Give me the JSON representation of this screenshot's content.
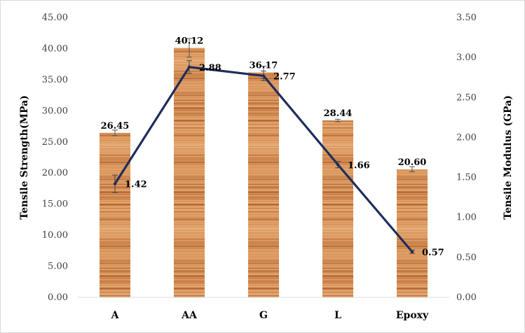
{
  "chart_data": {
    "type": "bar",
    "title": "",
    "categories": [
      "A",
      "AA",
      "G",
      "L",
      "Epoxy"
    ],
    "series": [
      {
        "type": "bar",
        "axis": "left",
        "values": [
          26.45,
          40.12,
          36.17,
          28.44,
          20.6
        ],
        "labels": [
          "26.45",
          "40.12",
          "36.17",
          "28.44",
          "20.60"
        ],
        "errors": [
          0.45,
          1.5,
          1.0,
          0.2,
          0.4
        ]
      },
      {
        "type": "line",
        "axis": "right",
        "values": [
          1.42,
          2.88,
          2.77,
          1.66,
          0.57
        ],
        "labels": [
          "1.42",
          "2.88",
          "2.77",
          "1.66",
          "0.57"
        ],
        "errors": [
          0.11,
          0.08,
          0.06,
          0.04,
          0.02
        ]
      }
    ],
    "y_left": {
      "label": "Tensile Strength(MPa)",
      "min": 0,
      "max": 45,
      "step": 5,
      "ticks": [
        "0.00",
        "5.00",
        "10.00",
        "15.00",
        "20.00",
        "25.00",
        "30.00",
        "35.00",
        "40.00",
        "45.00"
      ]
    },
    "y_right": {
      "label": "Tensile Modulus (GPa)",
      "min": 0,
      "max": 3.5,
      "step": 0.5,
      "ticks": [
        "0.00",
        "0.50",
        "1.00",
        "1.50",
        "2.00",
        "2.50",
        "3.00",
        "3.50"
      ]
    },
    "grid": false,
    "legend": "none",
    "colors": {
      "bar_base": "#d9955a",
      "bar_light": "#eab383",
      "bar_dark": "#a8592a",
      "line": "#1f2d5c",
      "axis": "#d9d9d9"
    }
  }
}
